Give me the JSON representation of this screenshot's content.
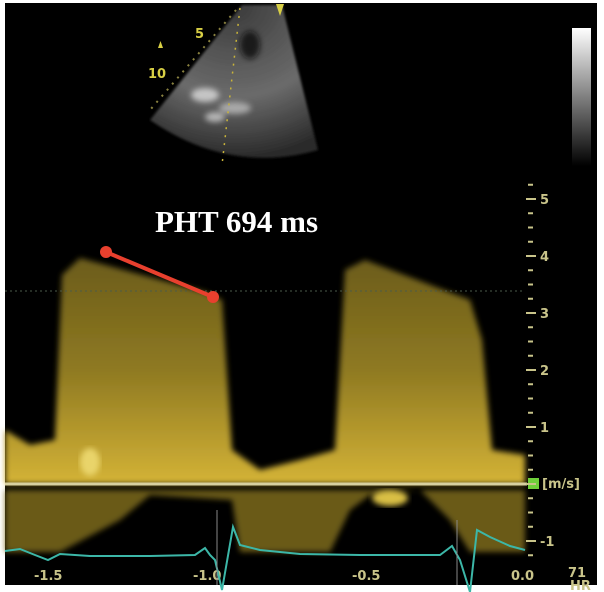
{
  "measurement": {
    "label": "PHT 694 ms",
    "color": "#e8402e"
  },
  "velocity_axis": {
    "unit": "[m/s]",
    "ticks": [
      "5",
      "4",
      "3",
      "2",
      "1",
      "-1"
    ],
    "tick_values": [
      5,
      4,
      3,
      2,
      1,
      -1
    ]
  },
  "time_axis": {
    "ticks": [
      "-1.5",
      "-1.0",
      "-0.5",
      "0.0"
    ],
    "tick_values": [
      -1.5,
      -1.0,
      -0.5,
      0.0
    ]
  },
  "heart_rate": {
    "value": "71",
    "unit": "HR"
  },
  "sector_depth_labels": [
    "5",
    "10"
  ],
  "colors": {
    "doppler": "#c9a92a",
    "ecg": "#3cb7a8",
    "axis": "#c9c48a",
    "baseline_marker": "#6fd13a"
  }
}
